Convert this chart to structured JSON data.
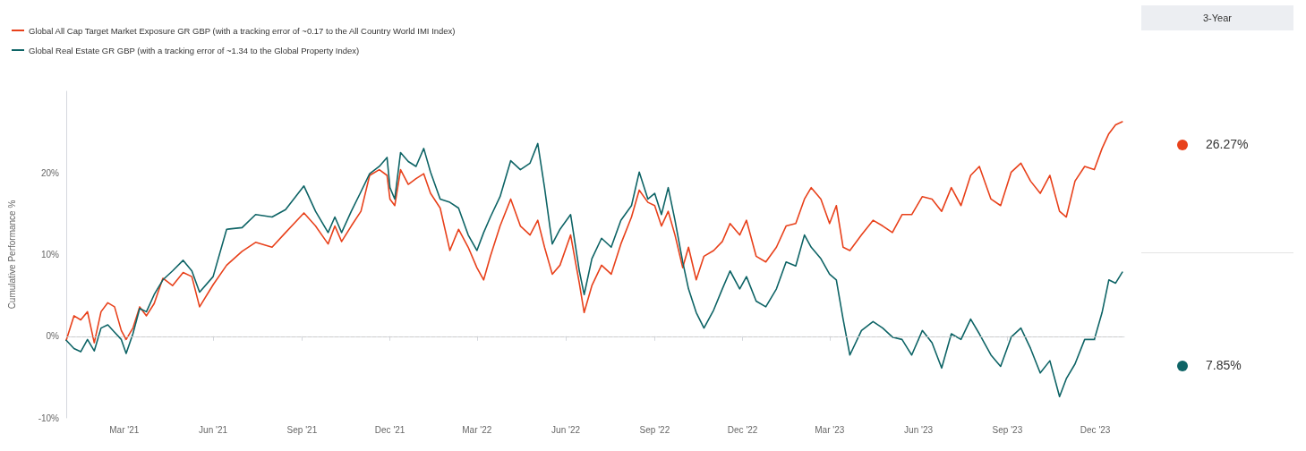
{
  "chart_data": {
    "type": "line",
    "ylabel": "Cumulative Performance %",
    "legend": "top left",
    "grid": false,
    "line_style": "solid",
    "marker": "none",
    "xlim": [
      "2020-12-31",
      "2023-12-31"
    ],
    "xticks": [
      {
        "value": "2021-03-01",
        "label": "Mar '21"
      },
      {
        "value": "2021-06-01",
        "label": "Jun '21"
      },
      {
        "value": "2021-09-01",
        "label": "Sep '21"
      },
      {
        "value": "2021-12-01",
        "label": "Dec '21"
      },
      {
        "value": "2022-03-01",
        "label": "Mar '22"
      },
      {
        "value": "2022-06-01",
        "label": "Jun '22"
      },
      {
        "value": "2022-09-01",
        "label": "Sep '22"
      },
      {
        "value": "2022-12-01",
        "label": "Dec '22"
      },
      {
        "value": "2023-03-01",
        "label": "Mar '23"
      },
      {
        "value": "2023-06-01",
        "label": "Jun '23"
      },
      {
        "value": "2023-09-01",
        "label": "Sep '23"
      },
      {
        "value": "2023-12-01",
        "label": "Dec '23"
      }
    ],
    "ylim": [
      -10,
      30
    ],
    "yticks": [
      {
        "value": -10,
        "label": "-10%"
      },
      {
        "value": 0,
        "label": "0%"
      },
      {
        "value": 10,
        "label": "10%"
      },
      {
        "value": 20,
        "label": "20%"
      }
    ],
    "ref_lines": [
      {
        "axis": "y",
        "value": 0,
        "label": null,
        "color": "#cccccc",
        "line_style": "dashed"
      }
    ],
    "annotations": [
      "3-Year",
      "26.27%",
      "7.85%"
    ],
    "x": [
      "2020-12-31",
      "2021-01-08",
      "2021-01-15",
      "2021-01-22",
      "2021-01-29",
      "2021-02-05",
      "2021-02-12",
      "2021-02-19",
      "2021-02-26",
      "2021-03-03",
      "2021-03-10",
      "2021-03-17",
      "2021-03-24",
      "2021-04-01",
      "2021-04-10",
      "2021-04-20",
      "2021-05-01",
      "2021-05-10",
      "2021-05-18",
      "2021-06-01",
      "2021-06-15",
      "2021-07-01",
      "2021-07-15",
      "2021-08-01",
      "2021-08-15",
      "2021-09-03",
      "2021-09-15",
      "2021-09-28",
      "2021-10-05",
      "2021-10-12",
      "2021-10-22",
      "2021-11-01",
      "2021-11-10",
      "2021-11-20",
      "2021-11-28",
      "2021-12-01",
      "2021-12-06",
      "2021-12-12",
      "2021-12-20",
      "2021-12-28",
      "2022-01-05",
      "2022-01-12",
      "2022-01-22",
      "2022-02-01",
      "2022-02-10",
      "2022-02-20",
      "2022-03-01",
      "2022-03-08",
      "2022-03-15",
      "2022-03-25",
      "2022-04-05",
      "2022-04-15",
      "2022-04-25",
      "2022-05-03",
      "2022-05-10",
      "2022-05-18",
      "2022-05-26",
      "2022-06-06",
      "2022-06-15",
      "2022-06-20",
      "2022-06-28",
      "2022-07-08",
      "2022-07-18",
      "2022-07-28",
      "2022-08-08",
      "2022-08-16",
      "2022-08-25",
      "2022-09-01",
      "2022-09-08",
      "2022-09-15",
      "2022-09-22",
      "2022-09-30",
      "2022-10-06",
      "2022-10-14",
      "2022-10-22",
      "2022-11-01",
      "2022-11-10",
      "2022-11-18",
      "2022-11-28",
      "2022-12-05",
      "2022-12-15",
      "2022-12-25",
      "2023-01-05",
      "2023-01-15",
      "2023-01-25",
      "2023-02-03",
      "2023-02-10",
      "2023-02-20",
      "2023-03-01",
      "2023-03-08",
      "2023-03-15",
      "2023-03-22",
      "2023-04-03",
      "2023-04-15",
      "2023-04-25",
      "2023-05-05",
      "2023-05-15",
      "2023-05-25",
      "2023-06-05",
      "2023-06-15",
      "2023-06-25",
      "2023-07-05",
      "2023-07-15",
      "2023-07-25",
      "2023-08-03",
      "2023-08-15",
      "2023-08-25",
      "2023-09-05",
      "2023-09-15",
      "2023-09-25",
      "2023-10-05",
      "2023-10-15",
      "2023-10-25",
      "2023-11-01",
      "2023-11-10",
      "2023-11-20",
      "2023-11-30",
      "2023-12-08",
      "2023-12-15",
      "2023-12-22",
      "2023-12-29"
    ],
    "series": [
      {
        "name": "Global All Cap Target Market Exposure GR GBP (with a tracking error of ~0.17 to the All Country World IMI Index)",
        "color": "#e8411b",
        "values": [
          -0.5,
          2.5,
          2,
          3,
          -0.8,
          3,
          4.1,
          3.6,
          0.7,
          -0.4,
          1,
          3.6,
          2.5,
          4,
          7.1,
          6.2,
          7.8,
          7.3,
          3.6,
          6.3,
          8.7,
          10.4,
          11.5,
          10.9,
          12.7,
          15.1,
          13.5,
          11.3,
          13.5,
          11.6,
          13.5,
          15.3,
          19.7,
          20.4,
          19.7,
          16.8,
          16,
          20.4,
          18.6,
          19.3,
          19.9,
          17.5,
          15.7,
          10.5,
          13.1,
          10.9,
          8.4,
          6.9,
          9.8,
          13.5,
          16.8,
          13.5,
          12.4,
          14.2,
          10.9,
          7.6,
          8.7,
          12.4,
          6.5,
          2.9,
          6.2,
          8.7,
          7.6,
          11.3,
          14.6,
          17.9,
          16.4,
          16,
          13.5,
          15.3,
          12.4,
          8.4,
          10.9,
          6.9,
          9.8,
          10.5,
          11.6,
          13.8,
          12.4,
          14.2,
          9.8,
          9.1,
          10.9,
          13.5,
          13.8,
          16.8,
          18.2,
          16.8,
          13.8,
          16,
          10.9,
          10.5,
          12.4,
          14.2,
          13.5,
          12.7,
          14.9,
          14.9,
          17.1,
          16.8,
          15.3,
          18.2,
          16,
          19.7,
          20.8,
          16.8,
          16,
          20.1,
          21.2,
          19,
          17.5,
          19.7,
          15.3,
          14.6,
          19,
          20.8,
          20.4,
          23,
          24.8,
          25.9,
          26.27
        ]
      },
      {
        "name": "Global Real Estate GR GBP (with a tracking error of ~1.34 to the Global Property Index)",
        "color": "#0e6466",
        "values": [
          -0.5,
          -1.5,
          -1.9,
          -0.4,
          -1.8,
          1,
          1.4,
          0.5,
          -0.4,
          -2.1,
          0.3,
          3.4,
          3,
          5.1,
          6.9,
          8,
          9.3,
          8,
          5.4,
          7.3,
          13.1,
          13.3,
          14.9,
          14.6,
          15.5,
          18.4,
          15.3,
          12.7,
          14.6,
          12.7,
          15.3,
          17.7,
          19.9,
          20.8,
          21.9,
          18.2,
          16.8,
          22.5,
          21.4,
          20.8,
          23,
          20.1,
          16.8,
          16.4,
          15.7,
          12.4,
          10.5,
          12.7,
          14.6,
          17.1,
          21.5,
          20.4,
          21.2,
          23.6,
          18.2,
          11.3,
          13.1,
          14.9,
          8,
          5.1,
          9.5,
          12,
          10.9,
          14.2,
          16,
          20.1,
          16.8,
          17.5,
          14.9,
          18.2,
          14.2,
          9.1,
          5.8,
          2.9,
          1,
          3.2,
          5.8,
          8,
          5.8,
          7.3,
          4.3,
          3.6,
          5.8,
          9.1,
          8.6,
          12.4,
          10.9,
          9.5,
          7.6,
          6.9,
          2.1,
          -2.3,
          0.7,
          1.8,
          1,
          -0.1,
          -0.4,
          -2.3,
          0.7,
          -0.8,
          -3.9,
          0.3,
          -0.4,
          2.1,
          0.3,
          -2.3,
          -3.7,
          -0.1,
          1,
          -1.5,
          -4.5,
          -3,
          -7.4,
          -5.2,
          -3.4,
          -0.4,
          -0.4,
          2.9,
          6.9,
          6.5,
          7.85
        ]
      }
    ]
  }
}
